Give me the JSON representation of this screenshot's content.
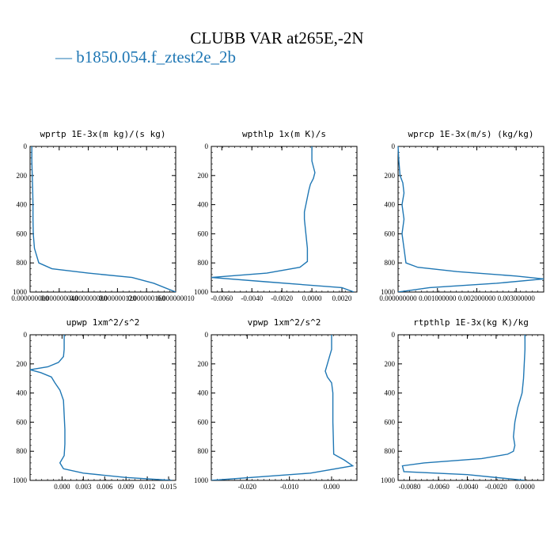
{
  "title": "CLUBB VAR at265E,-2N",
  "legend": {
    "label": "b1850.054.f_ztest2e_2b",
    "color": "#1f77b4"
  },
  "chart_data": [
    {
      "type": "line",
      "title": "wprtp  1E-3x(m kg)/(s kg)",
      "xlim": [
        0.0,
        1e-07
      ],
      "ylim": [
        1000,
        0
      ],
      "xticks": [
        "0.000000000",
        "0.000000040",
        "0.000000080",
        "0.000000120",
        "0.000000160",
        "0.000000010"
      ],
      "yticks": [
        "0",
        "200",
        "400",
        "600",
        "800",
        "1000"
      ],
      "series": [
        {
          "color": "#1f77b4",
          "x": [
            1.2e-09,
            1.2e-09,
            1.5e-09,
            1.8e-09,
            2e-09,
            2e-09,
            2.2e-09,
            3e-09,
            6e-09,
            1.5e-08,
            4e-08,
            7e-08,
            8.5e-08,
            1e-07
          ],
          "y": [
            0,
            100,
            200,
            300,
            400,
            500,
            600,
            700,
            800,
            840,
            870,
            900,
            940,
            1000
          ]
        }
      ]
    },
    {
      "type": "line",
      "title": "wpthlp  1x(m K)/s",
      "xlim": [
        -0.0067,
        0.003
      ],
      "ylim": [
        1000,
        0
      ],
      "xticks": [
        "-0.0060",
        "-0.0040",
        "-0.0020",
        "0.0000",
        "0.0020"
      ],
      "yticks": [
        "0",
        "200",
        "400",
        "600",
        "800",
        "1000"
      ],
      "series": [
        {
          "color": "#1f77b4",
          "x": [
            0.0,
            0.0,
            0.0001,
            0.0002,
            0.0001,
            -0.0001,
            -0.0002,
            -0.0003,
            -0.0004,
            -0.0005,
            -0.0005,
            -0.0004,
            -0.0003,
            -0.0003,
            -0.0008,
            -0.003,
            -0.0067,
            -0.003,
            0.002,
            0.0028
          ],
          "y": [
            0,
            100,
            140,
            180,
            220,
            260,
            300,
            350,
            400,
            450,
            500,
            600,
            700,
            790,
            830,
            870,
            900,
            930,
            970,
            1000
          ]
        }
      ]
    },
    {
      "type": "line",
      "title": "wprcp  1E-3x(m/s) (kg/kg)",
      "xlim": [
        0.0,
        0.0037
      ],
      "ylim": [
        1000,
        0
      ],
      "xticks": [
        "0.000000000",
        "0.001000000",
        "0.002000000",
        "0.003000000"
      ],
      "yticks": [
        "0",
        "200",
        "400",
        "600",
        "800",
        "1000"
      ],
      "series": [
        {
          "color": "#1f77b4",
          "x": [
            0.0,
            2e-05,
            5e-05,
            0.00012,
            0.00015,
            0.0001,
            0.00015,
            0.0001,
            0.00015,
            0.0002,
            0.0005,
            0.0015,
            0.003,
            0.0037,
            0.0025,
            0.0008,
            0.0
          ],
          "y": [
            0,
            100,
            200,
            250,
            320,
            400,
            500,
            600,
            700,
            800,
            830,
            860,
            890,
            910,
            940,
            970,
            1000
          ]
        }
      ]
    },
    {
      "type": "line",
      "title": "upwp  1xm^2/s^2",
      "xlim": [
        -0.0045,
        0.016
      ],
      "ylim": [
        1000,
        0
      ],
      "xticks": [
        "0.000",
        "0.003",
        "0.006",
        "0.009",
        "0.012",
        "0.015"
      ],
      "yticks": [
        "0",
        "200",
        "400",
        "600",
        "800",
        "1000"
      ],
      "series": [
        {
          "color": "#1f77b4",
          "x": [
            0.0003,
            0.0003,
            0.0002,
            -0.0005,
            -0.002,
            -0.0045,
            -0.003,
            -0.0015,
            -0.001,
            -0.0003,
            0.0002,
            0.0003,
            0.0004,
            0.0004,
            0.0003,
            -0.0003,
            0.0002,
            0.003,
            0.009,
            0.0155
          ],
          "y": [
            0,
            100,
            150,
            190,
            220,
            240,
            260,
            290,
            330,
            380,
            450,
            550,
            650,
            750,
            830,
            880,
            920,
            950,
            980,
            1000
          ]
        }
      ]
    },
    {
      "type": "line",
      "title": "vpwp  1xm^2/s^2",
      "xlim": [
        -0.0285,
        0.006
      ],
      "ylim": [
        1000,
        0
      ],
      "xticks": [
        "-0.020",
        "-0.010",
        "0.000"
      ],
      "yticks": [
        "0",
        "200",
        "400",
        "600",
        "800",
        "1000"
      ],
      "series": [
        {
          "color": "#1f77b4",
          "x": [
            0.0,
            0.0,
            -0.0005,
            -0.001,
            -0.0015,
            -0.001,
            0.0,
            0.0003,
            0.0003,
            0.0003,
            0.0004,
            0.0005,
            0.003,
            0.005,
            -0.005,
            -0.0285
          ],
          "y": [
            0,
            100,
            150,
            200,
            250,
            290,
            330,
            400,
            500,
            600,
            700,
            820,
            860,
            900,
            950,
            1000
          ]
        }
      ]
    },
    {
      "type": "line",
      "title": "rtpthlp  1E-3x(kg K)/kg",
      "xlim": [
        -0.0088,
        0.0013
      ],
      "ylim": [
        1000,
        0
      ],
      "xticks": [
        "-0.0080",
        "-0.0060",
        "-0.0040",
        "-0.0020",
        "0.0000"
      ],
      "yticks": [
        "0",
        "200",
        "400",
        "600",
        "800",
        "1000"
      ],
      "series": [
        {
          "color": "#1f77b4",
          "x": [
            0.0,
            0.0,
            -0.0001,
            -0.0002,
            -0.0005,
            -0.0007,
            -0.0008,
            -0.0007,
            -0.0008,
            -0.0012,
            -0.003,
            -0.007,
            -0.0085,
            -0.0084,
            -0.004,
            0.0
          ],
          "y": [
            0,
            100,
            300,
            400,
            500,
            600,
            700,
            760,
            800,
            820,
            850,
            880,
            900,
            940,
            960,
            1000
          ]
        }
      ]
    }
  ]
}
